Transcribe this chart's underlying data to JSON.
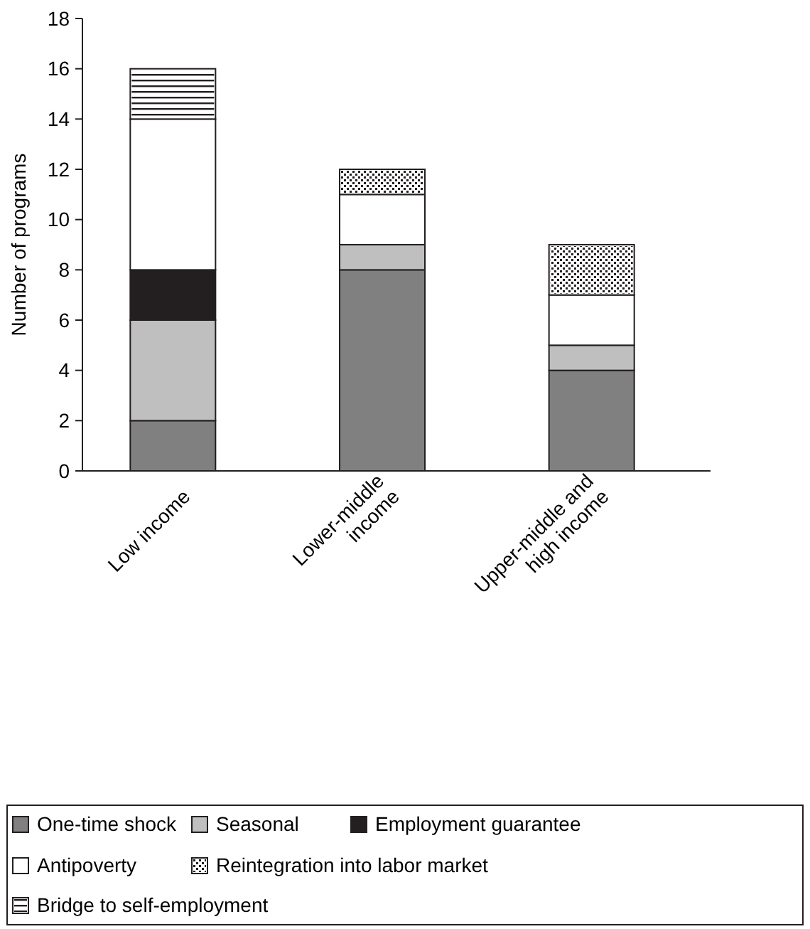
{
  "chart_data": {
    "type": "bar",
    "ylabel": "Number of programs",
    "categories": [
      "Low income",
      "Lower-middle income",
      "Upper-middle and high income"
    ],
    "stacked": true,
    "ylim": [
      0,
      18
    ],
    "yticks": [
      0,
      2,
      4,
      6,
      8,
      10,
      12,
      14,
      16,
      18
    ],
    "grid": false,
    "legend": "bottom",
    "series": [
      {
        "name": "One-time shock",
        "color": "#808080",
        "values": [
          2,
          8,
          4
        ]
      },
      {
        "name": "Seasonal",
        "color": "#bfbfbf",
        "values": [
          4,
          1,
          1
        ]
      },
      {
        "name": "Employment guarantee",
        "color": "#231f20",
        "values": [
          2,
          0,
          0
        ]
      },
      {
        "name": "Antipoverty",
        "color": "#ffffff",
        "values": [
          6,
          2,
          2
        ]
      },
      {
        "name": "Reintegration into labor market",
        "color": "#ffffff",
        "values": [
          0,
          1,
          2
        ]
      },
      {
        "name": "Bridge to self-employment",
        "color": "#ffffff",
        "values": [
          2,
          0,
          0
        ]
      }
    ]
  }
}
